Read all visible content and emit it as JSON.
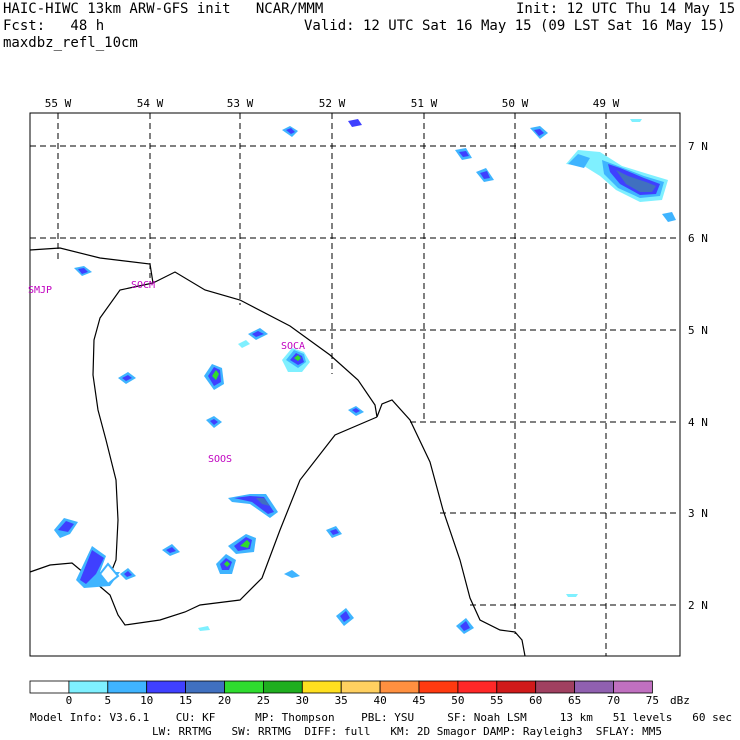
{
  "header": {
    "title_left": "HAIC-HIWC 13km ARW-GFS init   NCAR/MMM",
    "init": "Init: 12 UTC Thu 14 May 15",
    "fcst": "Fcst:   48 h",
    "valid": "Valid: 12 UTC Sat 16 May 15 (09 LST Sat 16 May 15)",
    "field": "maxdbz_refl_10cm"
  },
  "map": {
    "lon_labels": [
      "55 W",
      "54 W",
      "53 W",
      "52 W",
      "51 W",
      "50 W",
      "49 W"
    ],
    "lat_labels": [
      "7 N",
      "6 N",
      "5 N",
      "4 N",
      "3 N",
      "2 N"
    ],
    "stations": [
      {
        "id": "SMJP"
      },
      {
        "id": "SOCM"
      },
      {
        "id": "SOCA"
      },
      {
        "id": "SOOS"
      }
    ]
  },
  "colorbar": {
    "unit": "dBz",
    "ticks": [
      "0",
      "5",
      "10",
      "15",
      "20",
      "25",
      "30",
      "35",
      "40",
      "45",
      "50",
      "55",
      "60",
      "65",
      "70",
      "75"
    ],
    "colors": [
      "#ffffff",
      "#7ff0ff",
      "#3fb4ff",
      "#3f40ff",
      "#4070c0",
      "#2fdc2f",
      "#1fae1f",
      "#ffe020",
      "#ffd060",
      "#ff9040",
      "#ff3a10",
      "#ff2828",
      "#d01a1a",
      "#a04060",
      "#9060b0",
      "#c070c0"
    ]
  },
  "model_info": {
    "line1": "Model Info: V3.6.1    CU: KF      MP: Thompson    PBL: YSU     SF: Noah LSM     13 km   51 levels   60 sec",
    "line2": "LW: RRTMG   SW: RRTMG  DIFF: full   KM: 2D Smagor DAMP: Rayleigh3  SFLAY: MM5"
  }
}
